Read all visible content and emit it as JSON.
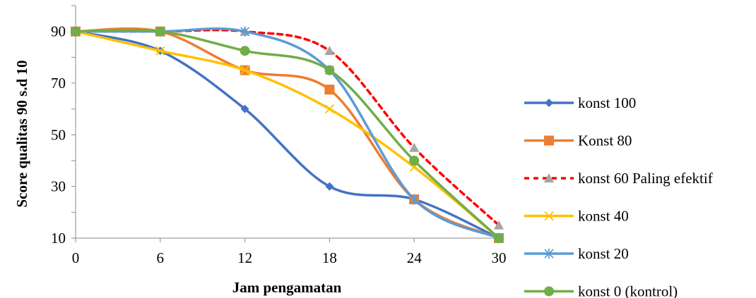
{
  "chart_data": {
    "type": "line",
    "smooth": true,
    "xlabel": "Jam pengamatan",
    "ylabel": "Score qualitas 90 s.d 10",
    "x": [
      0,
      6,
      12,
      18,
      24,
      30
    ],
    "xlim": [
      0,
      30
    ],
    "ylim": [
      10,
      100
    ],
    "yticks": [
      10,
      30,
      50,
      70,
      90
    ],
    "grid": false,
    "legend_position": "right",
    "series": [
      {
        "name": "konst 100",
        "color": "#4472C4",
        "marker": "diamond",
        "dashed": false,
        "values": [
          90,
          82.5,
          60,
          30,
          25,
          10
        ]
      },
      {
        "name": "Konst 80",
        "color": "#ED7D31",
        "marker": "square",
        "dashed": false,
        "values": [
          90,
          90,
          75,
          67.5,
          25,
          10
        ]
      },
      {
        "name": "konst 60 Paling efektif",
        "color": "#FF0000",
        "marker": "triangle",
        "marker_color": "#A5A5A5",
        "dashed": true,
        "values": [
          90,
          90,
          90,
          82.5,
          45,
          15
        ]
      },
      {
        "name": "konst 40",
        "color": "#FFC000",
        "marker": "x",
        "dashed": false,
        "values": [
          90,
          82.5,
          75,
          60,
          37.5,
          10
        ]
      },
      {
        "name": "konst 20",
        "color": "#5B9BD5",
        "marker": "star",
        "dashed": false,
        "values": [
          90,
          90,
          90,
          75,
          25,
          10
        ]
      },
      {
        "name": "konst 0 (kontrol)",
        "color": "#70AD47",
        "marker": "circle",
        "dashed": false,
        "values": [
          90,
          90,
          82.5,
          75,
          40,
          10
        ]
      }
    ]
  }
}
